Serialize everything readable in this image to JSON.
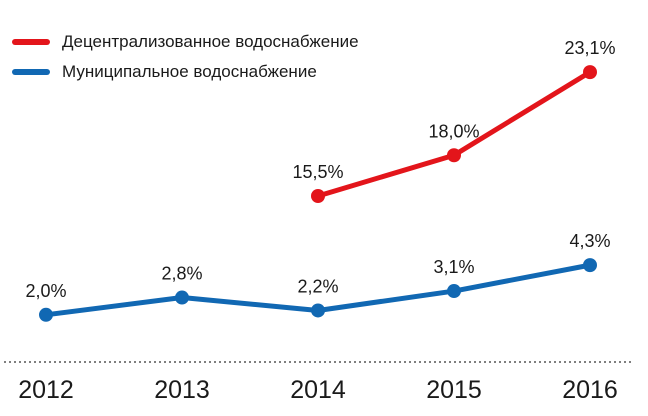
{
  "chart_data": {
    "type": "line",
    "categories": [
      "2012",
      "2013",
      "2014",
      "2015",
      "2016"
    ],
    "series": [
      {
        "name": "Децентрализованное водоснабжение",
        "color": "#e3151b",
        "values": [
          null,
          null,
          15.5,
          18.0,
          23.1
        ],
        "labels": [
          null,
          null,
          "15,5%",
          "18,0%",
          "23,1%"
        ]
      },
      {
        "name": "Муниципальное водоснабжение",
        "color": "#1168b3",
        "values": [
          2.0,
          2.8,
          2.2,
          3.1,
          4.3
        ],
        "labels": [
          "2,0%",
          "2,8%",
          "2,2%",
          "3,1%",
          "4,3%"
        ]
      }
    ],
    "legend_position": "top-left",
    "grid": false,
    "baseline": "dotted"
  }
}
